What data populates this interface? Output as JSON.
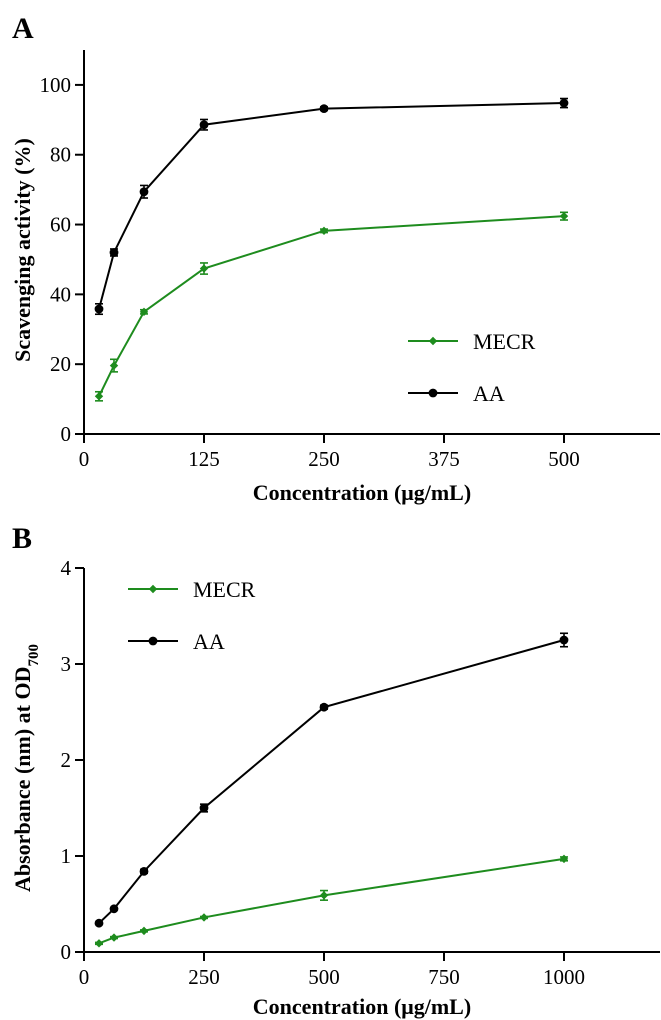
{
  "chart_data": [
    {
      "panel_label": "A",
      "type": "line",
      "xlabel": "Concentration (μg/mL)",
      "ylabel": "Scavenging activity (%)",
      "xlim": [
        0,
        600
      ],
      "ylim": [
        0,
        110
      ],
      "xticks": [
        0,
        125,
        250,
        375,
        500
      ],
      "xtick_labels": [
        "0",
        "125",
        "250",
        "375",
        "500"
      ],
      "yticks": [
        0,
        20,
        40,
        60,
        80,
        100
      ],
      "ytick_labels": [
        "0",
        "20",
        "40",
        "60",
        "80",
        "100"
      ],
      "grid": false,
      "legend_position": "bottom-right",
      "series": [
        {
          "name": "MECR",
          "color": "#1e8c1e",
          "marker": "diamond",
          "x": [
            15.625,
            31.25,
            62.5,
            125,
            250,
            500
          ],
          "y": [
            10.8,
            19.6,
            35.0,
            47.4,
            58.2,
            62.4
          ],
          "err": [
            1.3,
            1.8,
            0.6,
            1.6,
            0.5,
            1.1
          ]
        },
        {
          "name": "AA",
          "color": "#000000",
          "marker": "circle",
          "x": [
            15.625,
            31.25,
            62.5,
            125,
            250,
            500
          ],
          "y": [
            35.8,
            52.0,
            69.4,
            88.6,
            93.2,
            94.8
          ],
          "err": [
            1.5,
            1.0,
            1.8,
            1.5,
            0.5,
            1.3
          ]
        }
      ]
    },
    {
      "panel_label": "B",
      "type": "line",
      "xlabel": "Concentration (μg/mL)",
      "ylabel": "Absorbance (nm) at OD",
      "ylabel_subscript": "700",
      "xlim": [
        0,
        1200
      ],
      "ylim": [
        0,
        4
      ],
      "xticks": [
        0,
        250,
        500,
        750,
        1000
      ],
      "xtick_labels": [
        "0",
        "250",
        "500",
        "750",
        "1000"
      ],
      "yticks": [
        0,
        1,
        2,
        3,
        4
      ],
      "ytick_labels": [
        "0",
        "1",
        "2",
        "3",
        "4"
      ],
      "grid": false,
      "legend_position": "top-left",
      "series": [
        {
          "name": "MECR",
          "color": "#1e8c1e",
          "marker": "diamond",
          "x": [
            31.25,
            62.5,
            125,
            250,
            500,
            1000
          ],
          "y": [
            0.09,
            0.15,
            0.22,
            0.36,
            0.59,
            0.97
          ],
          "err": [
            0.01,
            0.01,
            0.01,
            0.01,
            0.05,
            0.02
          ]
        },
        {
          "name": "AA",
          "color": "#000000",
          "marker": "circle",
          "x": [
            31.25,
            62.5,
            125,
            250,
            500,
            1000
          ],
          "y": [
            0.3,
            0.45,
            0.84,
            1.5,
            2.55,
            3.25
          ],
          "err": [
            0.01,
            0.01,
            0.02,
            0.04,
            0.02,
            0.07
          ]
        }
      ]
    }
  ]
}
